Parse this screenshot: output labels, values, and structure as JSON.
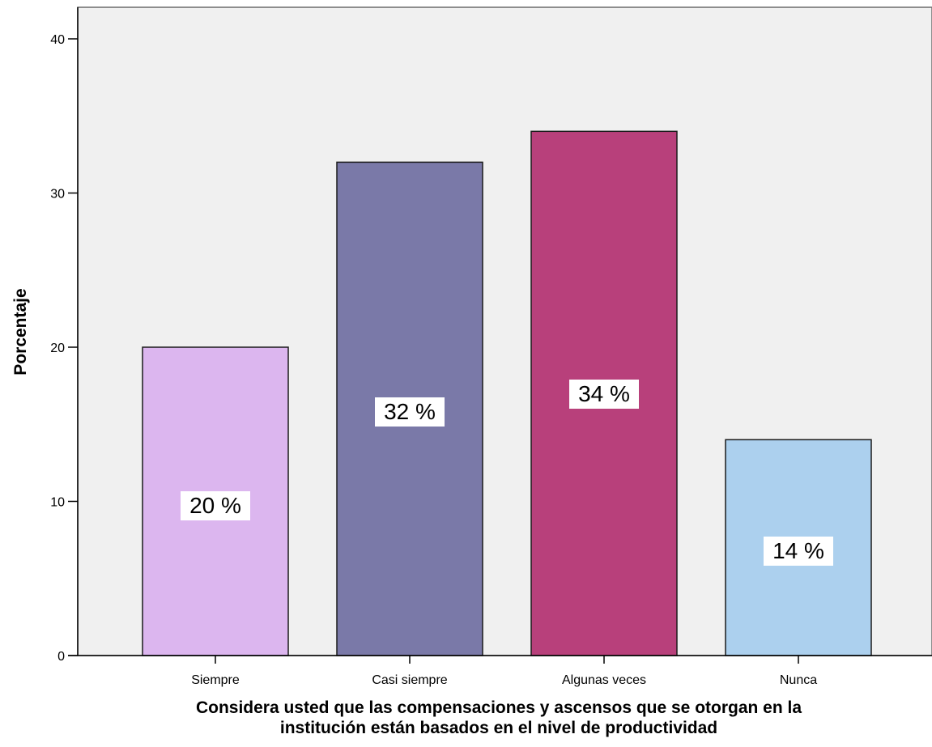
{
  "chart_data": {
    "type": "bar",
    "categories": [
      "Siempre",
      "Casi siempre",
      "Algunas veces",
      "Nunca"
    ],
    "values": [
      20,
      32,
      34,
      14
    ],
    "data_labels": [
      "20 %",
      "32 %",
      "34 %",
      "14 %"
    ],
    "colors": [
      "#dcb6ef",
      "#7a79a8",
      "#b8407b",
      "#acd0ee"
    ],
    "ylabel": "Porcentaje",
    "xlabel_lines": [
      "Considera usted que las compensaciones y ascensos que se otorgan en la",
      "institución están basados en el nivel de productividad"
    ],
    "ylim": [
      0,
      42
    ],
    "yticks": [
      0,
      10,
      20,
      30,
      40
    ],
    "plot_background": "#f0f0f0",
    "grid": false,
    "legend": "none"
  }
}
